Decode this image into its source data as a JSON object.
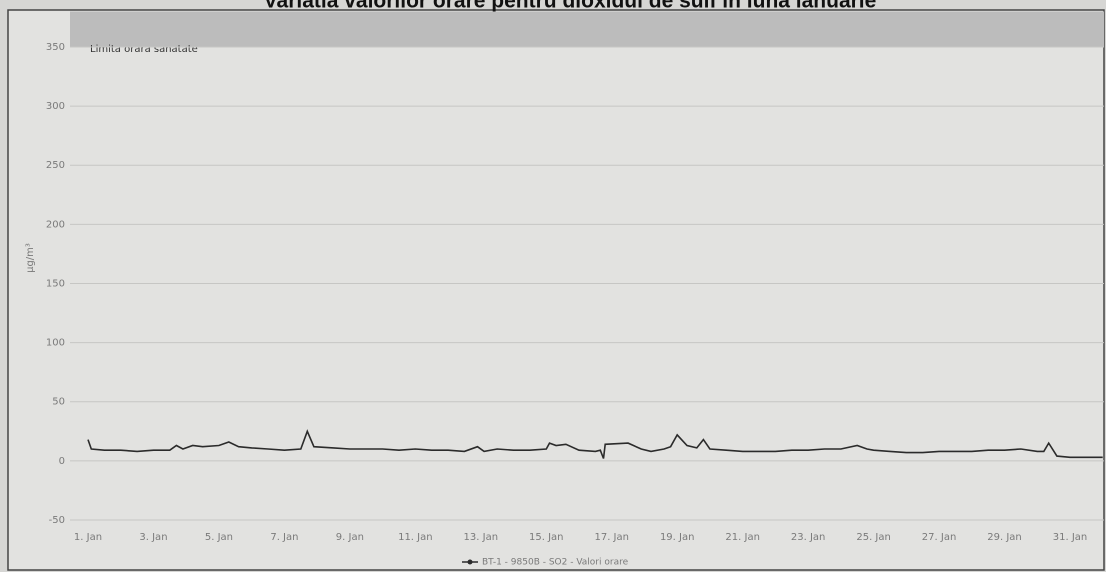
{
  "chart_data": {
    "type": "line",
    "title": "Variatia valorilor orare pentru dioxidul de sulf in luna ianuarie",
    "y_label": "µg/m³",
    "plot_band": {
      "from": 350,
      "to": 380,
      "label": "Limita orara sanatate",
      "color": "#bcbcbc"
    },
    "xlim": [
      1,
      32.1
    ],
    "xticks": [
      {
        "value": 1,
        "label": "1. Jan"
      },
      {
        "value": 3,
        "label": "3. Jan"
      },
      {
        "value": 5,
        "label": "5. Jan"
      },
      {
        "value": 7,
        "label": "7. Jan"
      },
      {
        "value": 9,
        "label": "9. Jan"
      },
      {
        "value": 11,
        "label": "11. Jan"
      },
      {
        "value": 13,
        "label": "13. Jan"
      },
      {
        "value": 15,
        "label": "15. Jan"
      },
      {
        "value": 17,
        "label": "17. Jan"
      },
      {
        "value": 19,
        "label": "19. Jan"
      },
      {
        "value": 21,
        "label": "21. Jan"
      },
      {
        "value": 23,
        "label": "23. Jan"
      },
      {
        "value": 25,
        "label": "25. Jan"
      },
      {
        "value": 27,
        "label": "27. Jan"
      },
      {
        "value": 29,
        "label": "29. Jan"
      },
      {
        "value": 31,
        "label": "31. Jan"
      }
    ],
    "ylim": [
      -50,
      380
    ],
    "yticks": [
      -50,
      0,
      50,
      100,
      150,
      200,
      250,
      300,
      350
    ],
    "grid": true,
    "legend": "bottom",
    "x": [
      1,
      1.1,
      1.5,
      2,
      2.5,
      3,
      3.5,
      3.7,
      3.9,
      4.2,
      4.5,
      5,
      5.3,
      5.6,
      6,
      6.5,
      7,
      7.5,
      7.7,
      7.9,
      8.5,
      9,
      9.5,
      10,
      10.5,
      11,
      11.5,
      12,
      12.5,
      12.9,
      13.1,
      13.5,
      14,
      14.5,
      15,
      15.1,
      15.3,
      15.6,
      16,
      16.5,
      16.65,
      16.75,
      16.8,
      17.5,
      17.9,
      18.2,
      18.6,
      18.8,
      19,
      19.3,
      19.6,
      19.8,
      20,
      20.5,
      21,
      21.5,
      22,
      22.5,
      23,
      23.5,
      24,
      24.5,
      24.8,
      25,
      25.5,
      26,
      26.5,
      27,
      27.5,
      28,
      28.5,
      29,
      29.5,
      30,
      30.2,
      30.35,
      30.6,
      31,
      31.5,
      32
    ],
    "series": [
      {
        "name": "BT-1 - 9850B - SO2 - Valori orare",
        "color": "#2b2b2b",
        "values": [
          18,
          10,
          9,
          9,
          8,
          9,
          9,
          13,
          10,
          13,
          12,
          13,
          16,
          12,
          11,
          10,
          9,
          10,
          25,
          12,
          11,
          10,
          10,
          10,
          9,
          10,
          9,
          9,
          8,
          12,
          8,
          10,
          9,
          9,
          10,
          15,
          13,
          14,
          9,
          8,
          9,
          2,
          14,
          15,
          10,
          8,
          10,
          12,
          22,
          13,
          11,
          18,
          10,
          9,
          8,
          8,
          8,
          9,
          9,
          10,
          10,
          13,
          10,
          9,
          8,
          7,
          7,
          8,
          8,
          8,
          9,
          9,
          10,
          8,
          8,
          15,
          4,
          3,
          3,
          3
        ]
      }
    ]
  }
}
